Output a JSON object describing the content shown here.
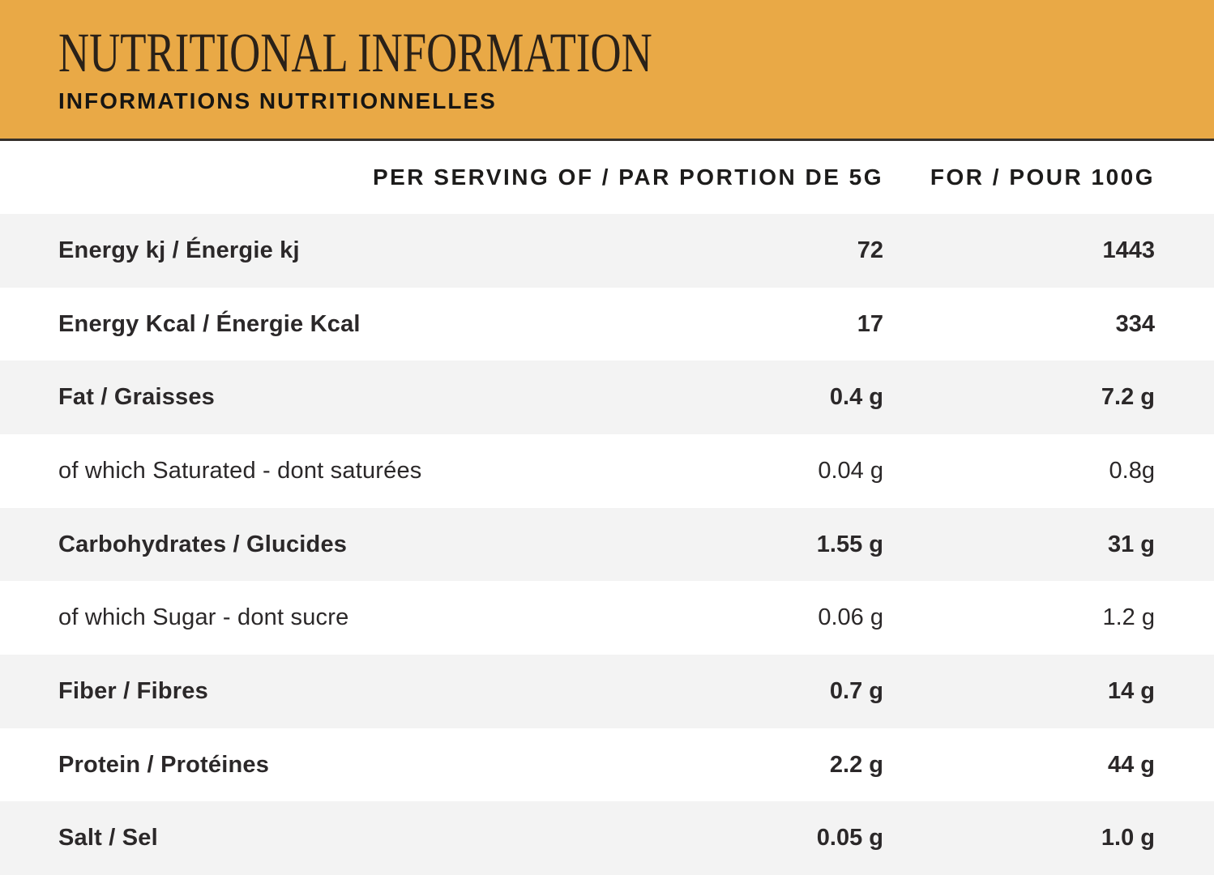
{
  "banner": {
    "title": "NUTRITIONAL INFORMATION",
    "subtitle": "INFORMATIONS NUTRITIONNELLES",
    "background_color": "#E9A946",
    "divider_color": "#35302B"
  },
  "table": {
    "columns": [
      {
        "label": "PER SERVING OF / PAR PORTION DE 5G"
      },
      {
        "label": "FOR / POUR 100G"
      }
    ],
    "rows": [
      {
        "label": "Energy kj / Énergie kj",
        "per_serving": "72",
        "per_100g": "1443"
      },
      {
        "label": "Energy Kcal / Énergie Kcal",
        "per_serving": "17",
        "per_100g": "334"
      },
      {
        "label": "Fat / Graisses",
        "per_serving": "0.4 g",
        "per_100g": "7.2 g"
      },
      {
        "label": "of which Saturated - dont saturées",
        "per_serving": "0.04 g",
        "per_100g": "0.8g"
      },
      {
        "label": "Carbohydrates / Glucides",
        "per_serving": "1.55 g",
        "per_100g": "31 g"
      },
      {
        "label": "of which Sugar - dont sucre",
        "per_serving": "0.06 g",
        "per_100g": "1.2 g"
      },
      {
        "label": "Fiber / Fibres",
        "per_serving": "0.7 g",
        "per_100g": "14 g"
      },
      {
        "label": "Protein / Protéines",
        "per_serving": "2.2 g",
        "per_100g": "44 g"
      },
      {
        "label": "Salt / Sel",
        "per_serving": "0.05 g",
        "per_100g": "1.0 g"
      }
    ],
    "colors": {
      "alt_row_background": "#F3F3F3",
      "text": "#2B2829"
    }
  }
}
